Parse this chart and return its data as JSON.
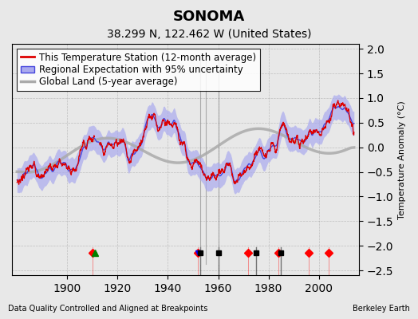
{
  "title": "SONOMA",
  "subtitle": "38.299 N, 122.462 W (United States)",
  "ylabel": "Temperature Anomaly (°C)",
  "xlabel_note": "Data Quality Controlled and Aligned at Breakpoints",
  "credit": "Berkeley Earth",
  "year_start": 1880,
  "year_end": 2014,
  "ylim": [
    -2.6,
    2.1
  ],
  "yticks": [
    -2.5,
    -2,
    -1.5,
    -1,
    -0.5,
    0,
    0.5,
    1,
    1.5,
    2
  ],
  "xticks": [
    1900,
    1920,
    1940,
    1960,
    1980,
    2000
  ],
  "station_moves": [
    1910,
    1952,
    1972,
    1984,
    1996,
    2004
  ],
  "record_gaps": [
    1911
  ],
  "time_obs_changes": [
    1952
  ],
  "empirical_breaks": [
    1953,
    1960,
    1975,
    1985
  ],
  "bg_color": "#e8e8e8",
  "plot_bg_color": "#e8e8e8",
  "regional_color": "#4444dd",
  "regional_shade_color": "#aaaaee",
  "station_color": "#dd0000",
  "global_color": "#aaaaaa",
  "legend_fontsize": 8.5,
  "title_fontsize": 13,
  "subtitle_fontsize": 10
}
